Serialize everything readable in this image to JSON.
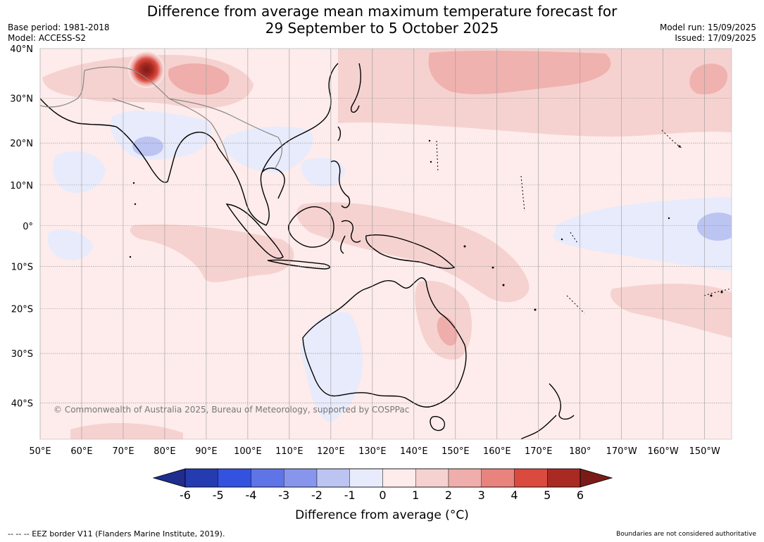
{
  "title": {
    "line1": "Difference from average mean maximum temperature forecast for",
    "line2": "29 September to 5 October 2025"
  },
  "meta_left": {
    "base_period": "Base period: 1981-2018",
    "model": "Model: ACCESS-S2"
  },
  "meta_right": {
    "model_run": "Model run: 15/09/2025",
    "issued": "Issued: 17/09/2025"
  },
  "lat_labels": [
    "40°N",
    "30°N",
    "20°N",
    "10°N",
    "0°",
    "10°S",
    "20°S",
    "30°S",
    "40°S"
  ],
  "lat_values": [
    40,
    30,
    20,
    10,
    0,
    -10,
    -20,
    -30,
    -40
  ],
  "lon_labels": [
    "50°E",
    "60°E",
    "70°E",
    "80°E",
    "90°E",
    "100°E",
    "110°E",
    "120°E",
    "130°E",
    "140°E",
    "150°E",
    "160°E",
    "170°E",
    "180°",
    "170°W",
    "160°W",
    "150°W"
  ],
  "lon_values": [
    50,
    60,
    70,
    80,
    90,
    100,
    110,
    120,
    130,
    140,
    150,
    160,
    170,
    180,
    190,
    200,
    210
  ],
  "copyright": "© Commonwealth of Australia 2025, Bureau of Meteorology, supported by COSPPac",
  "colorbar": {
    "ticks": [
      "-6",
      "-5",
      "-4",
      "-3",
      "-2",
      "-1",
      "0",
      "1",
      "2",
      "3",
      "4",
      "5",
      "6"
    ],
    "colors": [
      "#1f2d8f",
      "#253bb0",
      "#3352e0",
      "#5f74e6",
      "#8796ec",
      "#bcc4f2",
      "#e8ebfb",
      "#fdeceb",
      "#f5d2d0",
      "#efaeab",
      "#e8837e",
      "#da4a3e",
      "#a92a22",
      "#7a1b17"
    ],
    "label": "Difference from average ($^\\circ$C)",
    "label_text": "Difference from average (",
    "label_unit": "°C)"
  },
  "footer_left": "--  --  -- EEZ border V11 (Flanders Marine Institute, 2019).",
  "footer_right": "Boundaries are not considered authoritative"
}
